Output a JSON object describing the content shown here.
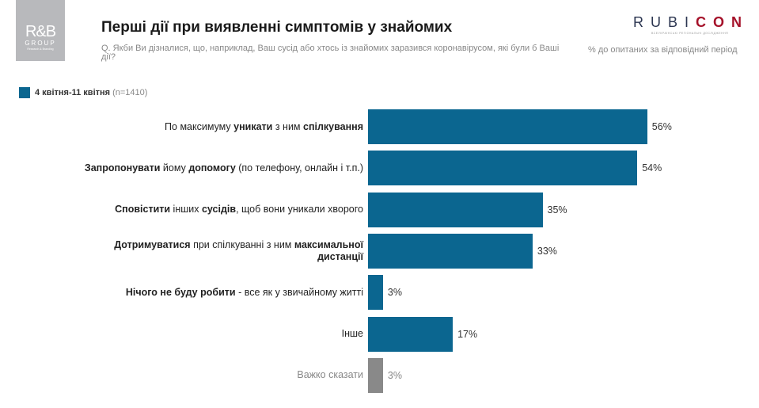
{
  "logo": {
    "text": "R&B GROUP",
    "line1": "R&B",
    "line2": "GROUP",
    "line3": "Research & Branding"
  },
  "header": {
    "title": "Перші дії при виявленні симптомів у знайомих",
    "question": "Q. Якби Ви дізналися, що, наприклад, Ваш сусід або хтось із знайомих заразився коронавірусом, які були б Ваші дії?",
    "unit_note": "% до опитаних за відповідний період"
  },
  "brand": {
    "name_plain": "RUBI",
    "name_accent": "CON",
    "tagline": "ВСЕУКРАЇНСЬКІ РЕГІОНАЛЬНІ ДОСЛІДЖЕННЯ"
  },
  "colors": {
    "series": "#0b6690",
    "neutral": "#898989",
    "brand_accent": "#a5122a"
  },
  "chart_data": {
    "type": "bar",
    "orientation": "horizontal",
    "unit": "%",
    "xlim": [
      0,
      100
    ],
    "grid": false,
    "legend_placement": "top-left",
    "legend": {
      "name": "4 квітня-11 квітня",
      "n": "(n=1410)"
    },
    "categories": [
      {
        "parts": [
          [
            "По максимуму ",
            false
          ],
          [
            "уникати",
            true
          ],
          [
            " з ним ",
            false
          ],
          [
            "спілкування",
            true
          ]
        ]
      },
      {
        "parts": [
          [
            "Запропонувати",
            true
          ],
          [
            " йому ",
            false
          ],
          [
            "допомогу",
            true
          ],
          [
            " (по телефону, онлайн і т.п.)",
            false
          ]
        ]
      },
      {
        "parts": [
          [
            "Сповістити",
            true
          ],
          [
            " інших ",
            false
          ],
          [
            "сусідів",
            true
          ],
          [
            ", щоб вони уникали хворого",
            false
          ]
        ]
      },
      {
        "parts": [
          [
            "Дотримуватися",
            true
          ],
          [
            " при спілкуванні з ним ",
            false
          ],
          [
            "максимальної дистанції",
            true
          ]
        ]
      },
      {
        "parts": [
          [
            "Нічого не буду робити",
            true
          ],
          [
            " - все як у звичайному житті",
            false
          ]
        ]
      },
      {
        "parts": [
          [
            "Інше",
            false
          ]
        ]
      },
      {
        "parts": [
          [
            "Важко сказати",
            false
          ]
        ],
        "neutral": true
      }
    ],
    "values": [
      56,
      54,
      35,
      33,
      3,
      17,
      3
    ],
    "labels": [
      "56%",
      "54%",
      "35%",
      "33%",
      "3%",
      "17%",
      "3%"
    ]
  }
}
